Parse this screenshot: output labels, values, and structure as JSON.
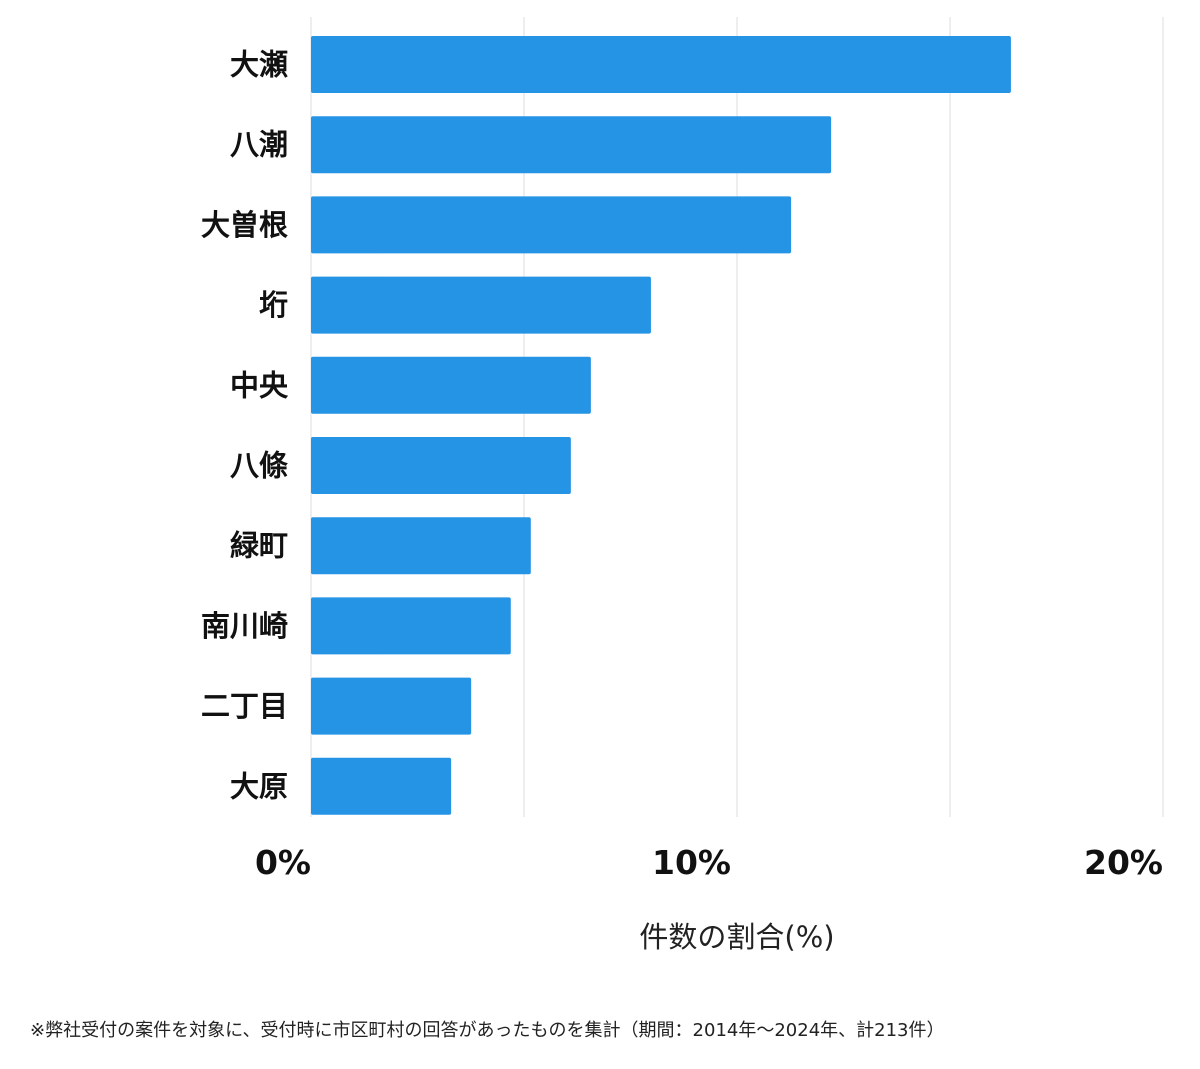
{
  "chart_data": {
    "type": "bar",
    "orientation": "horizontal",
    "categories": [
      "大瀬",
      "八潮",
      "大曽根",
      "垳",
      "中央",
      "八條",
      "緑町",
      "南川崎",
      "二丁目",
      "大原"
    ],
    "values": [
      16.43,
      12.21,
      11.27,
      7.98,
      6.57,
      6.1,
      5.16,
      4.69,
      3.76,
      3.29
    ],
    "xlabel": "件数の割合(%)",
    "xlim": [
      0,
      20
    ],
    "ticks": [
      {
        "value": 0,
        "label": "0%"
      },
      {
        "value": 10,
        "label": "10%"
      },
      {
        "value": 20,
        "label": "20%"
      }
    ],
    "gridlines": [
      0,
      5,
      10,
      15,
      20
    ],
    "grid": true,
    "bar_color": "#2594e5",
    "grid_color": "#dddddd"
  },
  "footnote": "※弊社受付の案件を対象に、受付時に市区町村の回答があったものを集計（期間：2014年～2024年、計213件）"
}
